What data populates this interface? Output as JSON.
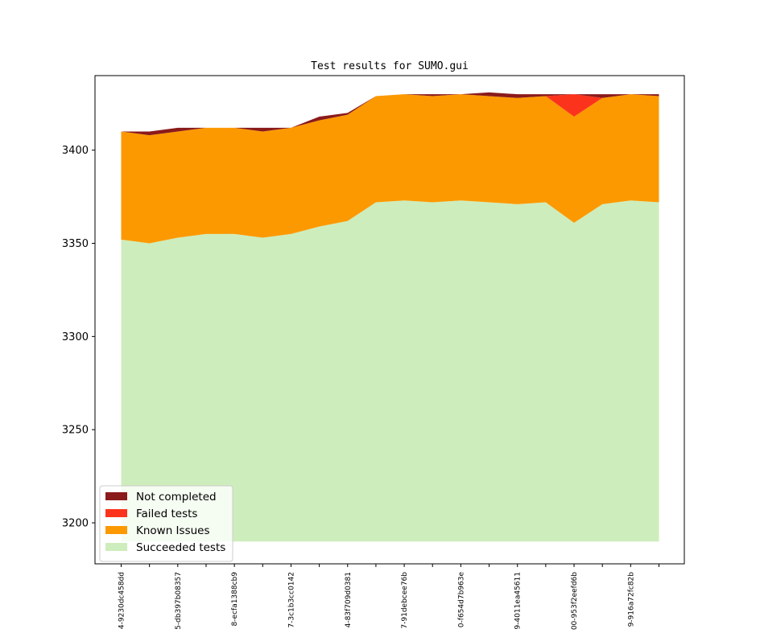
{
  "chart_data": {
    "type": "area",
    "title": "Test results for SUMO.gui",
    "xlabel": "",
    "ylabel": "",
    "ylim": [
      3178,
      3440
    ],
    "yticks": [
      3200,
      3250,
      3300,
      3350,
      3400
    ],
    "baseline": 3190,
    "x_labels": [
      "4-9230dc458dd",
      "5-db397b08357",
      "8-ecfa1388cb9",
      "7-3c1b3cc0142",
      "4-83f709d0381",
      "7-91debcee76b",
      "0-f654d7b963e",
      "9-4011ea45611",
      "00-953f2eefd6b",
      "9-916a72fc82b"
    ],
    "label_every": 2,
    "legend_position": "lower left",
    "series": [
      {
        "name": "Succeeded tests",
        "color": "#ceedbc",
        "values": [
          162,
          160,
          163,
          165,
          165,
          163,
          165,
          169,
          172,
          182,
          183,
          182,
          183,
          182,
          181,
          182,
          171,
          181,
          183,
          182
        ]
      },
      {
        "name": "Known Issues",
        "color": "#fc9900",
        "values": [
          58,
          58,
          57,
          57,
          57,
          57,
          57,
          57,
          57,
          57,
          57,
          57,
          57,
          57,
          57,
          57,
          57,
          57,
          57,
          57
        ]
      },
      {
        "name": "Failed tests",
        "color": "#fc331c",
        "values": [
          0,
          0,
          0,
          0,
          0,
          0,
          0,
          0,
          0,
          0,
          0,
          0,
          0,
          0,
          0,
          0,
          12,
          0,
          0,
          0
        ]
      },
      {
        "name": "Not completed",
        "color": "#8b1a1a",
        "values": [
          0,
          2,
          2,
          0,
          0,
          2,
          0,
          2,
          1,
          0,
          0,
          1,
          0,
          2,
          2,
          1,
          0,
          2,
          0,
          1
        ]
      }
    ]
  }
}
